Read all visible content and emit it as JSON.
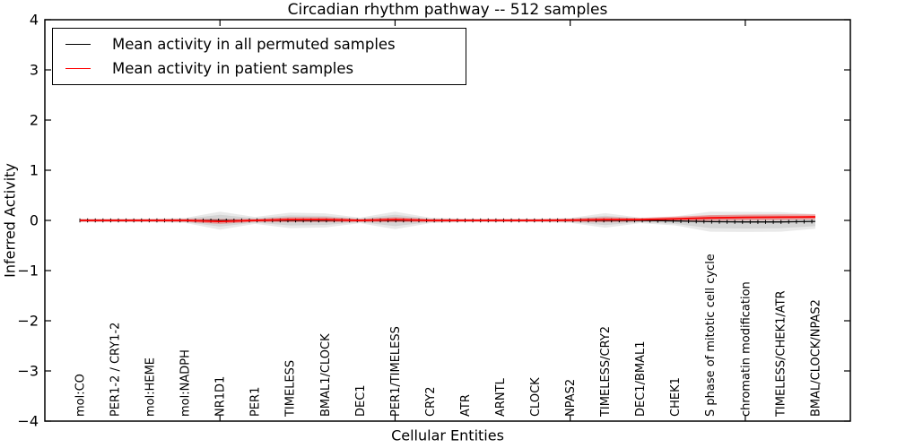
{
  "window": {
    "background": "#ffffff"
  },
  "legend": {
    "position": "upper left",
    "items": [
      {
        "label": "Mean activity in all permuted samples",
        "color": "#000000"
      },
      {
        "label": "Mean activity in patient samples",
        "color": "#ff0000"
      }
    ]
  },
  "chart_data": {
    "type": "line",
    "title": "Circadian rhythm pathway -- 512 samples",
    "xlabel": "Cellular Entities",
    "ylabel": "Inferred Activity",
    "ylim": [
      -4,
      4
    ],
    "xlim": [
      0,
      23
    ],
    "grid": false,
    "legend_position": "upper left",
    "y_ticks": [
      4,
      3,
      2,
      1,
      0,
      -1,
      -2,
      -3,
      -4
    ],
    "y_tick_labels": [
      "4",
      "3",
      "2",
      "1",
      "0",
      "−1",
      "−2",
      "−3",
      "−4"
    ],
    "x_major_tick_positions": [
      5,
      10,
      15,
      20
    ],
    "x": [
      1,
      2,
      3,
      4,
      5,
      6,
      7,
      8,
      9,
      10,
      11,
      12,
      13,
      14,
      15,
      16,
      17,
      18,
      19,
      20,
      21,
      22
    ],
    "categories": [
      "mol:CO",
      "PER1-2 / CRY1-2",
      "mol:HEME",
      "mol:NADPH",
      "NR1D1",
      "PER1",
      "TIMELESS",
      "BMAL1/CLOCK",
      "DEC1",
      "PER1/TIMELESS",
      "CRY2",
      "ATR",
      "ARNTL",
      "CLOCK",
      "NPAS2",
      "TIMELESS/CRY2",
      "DEC1/BMAL1",
      "CHEK1",
      "S phase of mitotic cell cycle",
      "chromatin modification",
      "TIMELESS/CHEK1/ATR",
      "BMAL/CLOCK/NPAS2"
    ],
    "series": [
      {
        "name": "Mean activity in all permuted samples",
        "color": "#000000",
        "style": "line-with-tick-markers",
        "values": [
          0,
          0,
          0,
          0,
          -0.005,
          0,
          0,
          0,
          0,
          0,
          0,
          0,
          0,
          0,
          0,
          0,
          0,
          -0.01,
          -0.025,
          -0.03,
          -0.03,
          -0.02
        ],
        "spread_half_width": [
          0.035,
          0.035,
          0.035,
          0.05,
          0.18,
          0.07,
          0.155,
          0.14,
          0.055,
          0.175,
          0.055,
          0.035,
          0.035,
          0.035,
          0.05,
          0.145,
          0.055,
          0.09,
          0.2,
          0.2,
          0.195,
          0.145
        ],
        "spread_fill": "rgba(0,0,0,0.085)",
        "spread_inner_scale": 0.65
      },
      {
        "name": "Mean activity in patient samples",
        "color": "#ff0000",
        "style": "line",
        "values": [
          0,
          0,
          0,
          0,
          -0.02,
          0,
          0.015,
          0.015,
          0,
          0.015,
          0,
          0,
          0,
          0,
          0.005,
          0.015,
          0.015,
          0.03,
          0.05,
          0.06,
          0.065,
          0.07
        ],
        "spread_half_width": [
          0.025,
          0.025,
          0.025,
          0.03,
          0.05,
          0.03,
          0.05,
          0.05,
          0.03,
          0.05,
          0.03,
          0.025,
          0.025,
          0.025,
          0.03,
          0.05,
          0.035,
          0.045,
          0.055,
          0.055,
          0.055,
          0.05
        ],
        "spread_fill": "rgba(255,0,0,0.30)"
      }
    ],
    "axes": {
      "frame_color": "#000000",
      "tick_direction": "in",
      "category_label_rotation_deg": 90,
      "category_labels_inside_plot": true
    }
  }
}
